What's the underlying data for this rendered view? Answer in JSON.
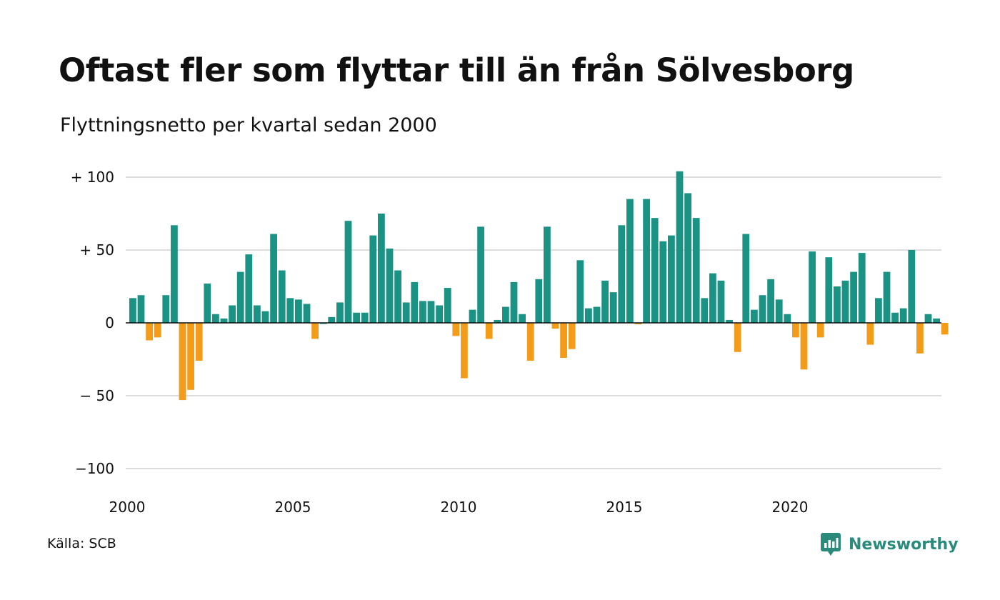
{
  "header": {
    "title": "Oftast fler som flyttar till än från Sölvesborg",
    "subtitle": "Flyttningsnetto per kvartal sedan 2000"
  },
  "footer": {
    "source": "Källa: SCB",
    "brand": "Newsworthy"
  },
  "colors": {
    "positive": "#1b9384",
    "negative": "#f39c1a",
    "gridline": "#dddddd",
    "zero_line": "#111111",
    "brand": "#2a8a7c"
  },
  "icons": {
    "brand_logo": "newsworthy-logo-icon"
  },
  "chart_data": {
    "type": "bar",
    "title": "Oftast fler som flyttar till än från Sölvesborg",
    "subtitle": "Flyttningsnetto per kvartal sedan 2000",
    "xlabel": "",
    "ylabel": "",
    "ylim": [
      -100,
      104
    ],
    "grid": true,
    "legend": "none",
    "x_ticks": [
      "2000",
      "2005",
      "2010",
      "2015",
      "2020"
    ],
    "y_ticks": [
      {
        "value": 100,
        "label": "+ 100"
      },
      {
        "value": 50,
        "label": "+  50"
      },
      {
        "value": 0,
        "label": "0"
      },
      {
        "value": -50,
        "label": "− 50"
      },
      {
        "value": -100,
        "label": "−100"
      }
    ],
    "start_year": 2000,
    "values": [
      17,
      19,
      -12,
      -10,
      19,
      67,
      -53,
      -46,
      -26,
      27,
      6,
      3,
      12,
      35,
      47,
      12,
      8,
      61,
      36,
      17,
      16,
      13,
      -11,
      0,
      4,
      14,
      70,
      7,
      7,
      60,
      75,
      51,
      36,
      14,
      28,
      15,
      15,
      12,
      24,
      -9,
      -38,
      9,
      66,
      -11,
      2,
      11,
      28,
      6,
      -26,
      30,
      66,
      -4,
      -24,
      -18,
      43,
      10,
      11,
      29,
      21,
      67,
      85,
      -1,
      85,
      72,
      56,
      60,
      104,
      89,
      72,
      17,
      34,
      29,
      2,
      -20,
      61,
      9,
      19,
      30,
      16,
      6,
      -10,
      -32,
      49,
      -10,
      45,
      25,
      29,
      35,
      48,
      -15,
      17,
      35,
      7,
      10,
      50,
      -21,
      6,
      3,
      -8
    ]
  }
}
